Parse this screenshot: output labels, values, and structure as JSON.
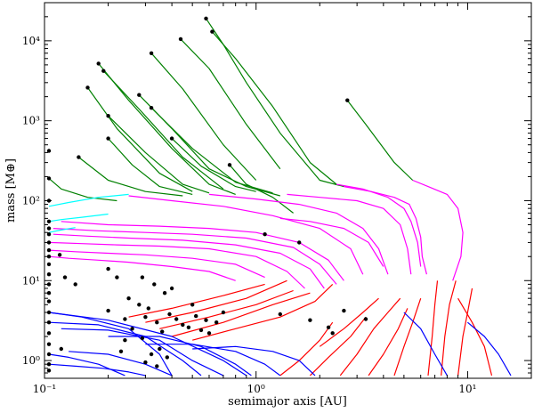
{
  "chart_data": {
    "type": "line",
    "title": "",
    "xlabel": "semimajor axis [AU]",
    "ylabel": "mass [M⊕]",
    "xscale": "log",
    "yscale": "log",
    "xlim": [
      0.1,
      20
    ],
    "ylim": [
      0.6,
      30000
    ],
    "x_ticks": [
      {
        "value": 0.1,
        "label": "10⁻¹"
      },
      {
        "value": 1,
        "label": "10⁰"
      },
      {
        "value": 10,
        "label": "10¹"
      }
    ],
    "y_ticks": [
      {
        "value": 1,
        "label": "10⁰"
      },
      {
        "value": 10,
        "label": "10¹"
      },
      {
        "value": 100,
        "label": "10²"
      },
      {
        "value": 1000,
        "label": "10³"
      },
      {
        "value": 10000,
        "label": "10⁴"
      }
    ],
    "grid": false,
    "colors": {
      "blue": "#0000ff",
      "red": "#ff0000",
      "magenta": "#ff00ff",
      "cyan": "#00ffff",
      "green": "#008000",
      "point": "#000000"
    },
    "series": [
      {
        "color": "green",
        "x": [
          0.58,
          0.7,
          0.9,
          1.3,
          2.0,
          2.6
        ],
        "y": [
          19000,
          9000,
          3000,
          700,
          180,
          150
        ]
      },
      {
        "color": "green",
        "x": [
          0.62,
          0.8,
          1.2,
          1.8,
          2.4
        ],
        "y": [
          13000,
          6000,
          1500,
          300,
          160
        ]
      },
      {
        "color": "green",
        "x": [
          0.44,
          0.6,
          0.9,
          1.3
        ],
        "y": [
          10500,
          4500,
          900,
          250
        ]
      },
      {
        "color": "green",
        "x": [
          0.32,
          0.45,
          0.7,
          1.0
        ],
        "y": [
          7000,
          2500,
          500,
          180
        ]
      },
      {
        "color": "green",
        "x": [
          0.18,
          0.25,
          0.4,
          0.6,
          0.8
        ],
        "y": [
          5200,
          1800,
          450,
          160,
          120
        ]
      },
      {
        "color": "green",
        "x": [
          0.19,
          0.28,
          0.45,
          0.7
        ],
        "y": [
          4200,
          1400,
          350,
          140
        ]
      },
      {
        "color": "green",
        "x": [
          0.16,
          0.22,
          0.35,
          0.5
        ],
        "y": [
          2600,
          800,
          220,
          130
        ]
      },
      {
        "color": "green",
        "x": [
          0.28,
          0.4,
          0.6,
          0.9,
          1.3
        ],
        "y": [
          2100,
          800,
          250,
          150,
          115
        ]
      },
      {
        "color": "green",
        "x": [
          0.32,
          0.5,
          0.8,
          1.2
        ],
        "y": [
          1450,
          450,
          170,
          125
        ]
      },
      {
        "color": "green",
        "x": [
          0.2,
          0.3,
          0.45,
          0.6
        ],
        "y": [
          1150,
          400,
          160,
          125
        ]
      },
      {
        "color": "green",
        "x": [
          0.2,
          0.26,
          0.35,
          0.5
        ],
        "y": [
          600,
          280,
          150,
          120
        ]
      },
      {
        "color": "green",
        "x": [
          0.4,
          0.55,
          0.8,
          1.0
        ],
        "y": [
          600,
          270,
          150,
          130
        ]
      },
      {
        "color": "green",
        "x": [
          0.145,
          0.2,
          0.3,
          0.45
        ],
        "y": [
          350,
          180,
          130,
          115
        ]
      },
      {
        "color": "green",
        "x": [
          0.75,
          0.9,
          1.2,
          1.5
        ],
        "y": [
          280,
          160,
          110,
          70
        ]
      },
      {
        "color": "green",
        "x": [
          2.7,
          3.3,
          4.5,
          5.5
        ],
        "y": [
          1800,
          900,
          300,
          180
        ]
      },
      {
        "color": "green",
        "x": [
          0.105,
          0.12,
          0.16,
          0.22
        ],
        "y": [
          190,
          140,
          110,
          100
        ]
      },
      {
        "color": "magenta",
        "x": [
          2.6,
          3.5,
          4.5,
          5.3,
          5.7,
          6.0,
          6.1,
          6.4
        ],
        "y": [
          150,
          130,
          110,
          90,
          60,
          35,
          20,
          12
        ]
      },
      {
        "color": "magenta",
        "x": [
          2.4,
          3.2,
          4.2,
          5.0,
          5.4,
          5.8,
          6.0
        ],
        "y": [
          160,
          140,
          110,
          80,
          55,
          30,
          15
        ]
      },
      {
        "color": "magenta",
        "x": [
          5.5,
          6.5,
          8.0,
          9.0,
          9.5,
          9.3,
          8.5
        ],
        "y": [
          180,
          150,
          120,
          80,
          40,
          20,
          10
        ]
      },
      {
        "color": "magenta",
        "x": [
          1.4,
          2.0,
          3.0,
          4.0,
          4.8,
          5.2,
          5.4
        ],
        "y": [
          120,
          110,
          100,
          80,
          50,
          25,
          12
        ]
      },
      {
        "color": "magenta",
        "x": [
          0.6,
          1.0,
          1.6,
          2.4,
          3.2,
          3.8,
          4.2
        ],
        "y": [
          120,
          105,
          90,
          70,
          45,
          25,
          12
        ]
      },
      {
        "color": "magenta",
        "x": [
          0.25,
          0.4,
          0.7,
          1.2,
          2.0,
          2.8,
          3.2
        ],
        "y": [
          115,
          100,
          85,
          65,
          45,
          25,
          12
        ]
      },
      {
        "color": "magenta",
        "x": [
          0.12,
          0.2,
          0.35,
          0.6,
          1.0,
          1.6,
          2.2,
          2.6
        ],
        "y": [
          55,
          50,
          48,
          45,
          40,
          30,
          18,
          10
        ]
      },
      {
        "color": "magenta",
        "x": [
          0.11,
          0.18,
          0.3,
          0.5,
          0.9,
          1.5,
          2.0,
          2.4
        ],
        "y": [
          45,
          42,
          40,
          38,
          34,
          26,
          16,
          9
        ]
      },
      {
        "color": "magenta",
        "x": [
          0.11,
          0.16,
          0.25,
          0.45,
          0.8,
          1.3,
          1.8,
          2.1
        ],
        "y": [
          38,
          36,
          34,
          32,
          28,
          22,
          14,
          8
        ]
      },
      {
        "color": "magenta",
        "x": [
          0.105,
          0.15,
          0.22,
          0.35,
          0.6,
          1.0,
          1.4,
          1.7
        ],
        "y": [
          30,
          29,
          28,
          27,
          25,
          20,
          13,
          8
        ]
      },
      {
        "color": "magenta",
        "x": [
          0.105,
          0.14,
          0.2,
          0.3,
          0.5,
          0.8,
          1.1
        ],
        "y": [
          24,
          23,
          22,
          21,
          19,
          16,
          11
        ]
      },
      {
        "color": "magenta",
        "x": [
          0.105,
          0.13,
          0.18,
          0.25,
          0.4,
          0.6,
          0.8
        ],
        "y": [
          20,
          19,
          18,
          17,
          15,
          13,
          10
        ]
      },
      {
        "color": "magenta",
        "x": [
          1.3,
          1.8,
          2.6,
          3.4,
          4.0
        ],
        "y": [
          60,
          55,
          45,
          30,
          15
        ]
      },
      {
        "color": "cyan",
        "x": [
          0.105,
          0.13,
          0.18,
          0.25
        ],
        "y": [
          85,
          95,
          110,
          120
        ]
      },
      {
        "color": "cyan",
        "x": [
          0.105,
          0.12,
          0.15,
          0.2
        ],
        "y": [
          55,
          58,
          62,
          68
        ]
      },
      {
        "color": "cyan",
        "x": [
          0.105,
          0.12,
          0.14
        ],
        "y": [
          40,
          43,
          46
        ]
      },
      {
        "color": "red",
        "x": [
          0.3,
          0.5,
          0.9,
          1.4
        ],
        "y": [
          3.0,
          4.0,
          6.0,
          10.0
        ]
      },
      {
        "color": "red",
        "x": [
          0.35,
          0.6,
          1.0,
          1.5
        ],
        "y": [
          2.5,
          3.5,
          5.0,
          7.5
        ]
      },
      {
        "color": "red",
        "x": [
          0.25,
          0.4,
          0.7,
          1.1
        ],
        "y": [
          3.5,
          4.5,
          6.5,
          9.0
        ]
      },
      {
        "color": "red",
        "x": [
          0.4,
          0.7,
          1.2,
          1.8
        ],
        "y": [
          2.0,
          3.0,
          5.0,
          7.0
        ]
      },
      {
        "color": "red",
        "x": [
          0.5,
          0.8,
          1.3,
          1.9,
          2.3
        ],
        "y": [
          1.8,
          2.5,
          3.5,
          5.5,
          9.0
        ]
      },
      {
        "color": "red",
        "x": [
          1.3,
          1.6,
          2.0,
          2.3
        ],
        "y": [
          0.65,
          1.0,
          1.8,
          3.0
        ]
      },
      {
        "color": "red",
        "x": [
          1.8,
          2.2,
          2.8,
          3.3
        ],
        "y": [
          0.65,
          1.1,
          2.0,
          3.5
        ]
      },
      {
        "color": "red",
        "x": [
          2.5,
          3.0,
          3.6,
          4.2,
          4.8
        ],
        "y": [
          0.65,
          1.2,
          2.5,
          4.0,
          6.0
        ]
      },
      {
        "color": "red",
        "x": [
          3.4,
          4.0,
          4.7,
          5.2
        ],
        "y": [
          0.65,
          1.2,
          2.5,
          4.5
        ]
      },
      {
        "color": "red",
        "x": [
          4.5,
          5.0,
          5.5,
          6.0
        ],
        "y": [
          0.65,
          1.5,
          3.0,
          6.0
        ]
      },
      {
        "color": "red",
        "x": [
          6.5,
          6.8,
          7.0,
          7.2
        ],
        "y": [
          0.65,
          2.0,
          5.0,
          10.0
        ]
      },
      {
        "color": "red",
        "x": [
          7.5,
          7.8,
          8.2,
          8.8
        ],
        "y": [
          0.65,
          2.0,
          5.0,
          10.0
        ]
      },
      {
        "color": "red",
        "x": [
          9.0,
          9.5,
          10.0,
          10.5
        ],
        "y": [
          0.65,
          2.0,
          4.0,
          8.0
        ]
      },
      {
        "color": "red",
        "x": [
          13.0,
          12.0,
          10.5,
          9.0
        ],
        "y": [
          0.65,
          1.5,
          3.0,
          6.0
        ]
      },
      {
        "color": "red",
        "x": [
          2.0,
          2.6,
          3.2,
          3.8
        ],
        "y": [
          1.5,
          2.5,
          4.0,
          6.0
        ]
      },
      {
        "color": "blue",
        "x": [
          0.105,
          0.15,
          0.25,
          0.35,
          0.4
        ],
        "y": [
          4.0,
          3.5,
          2.5,
          1.2,
          0.65
        ]
      },
      {
        "color": "blue",
        "x": [
          0.105,
          0.18,
          0.3,
          0.45,
          0.55
        ],
        "y": [
          3.0,
          2.8,
          2.0,
          1.0,
          0.65
        ]
      },
      {
        "color": "blue",
        "x": [
          0.12,
          0.2,
          0.35,
          0.5,
          0.7
        ],
        "y": [
          2.5,
          2.4,
          1.8,
          1.0,
          0.65
        ]
      },
      {
        "color": "blue",
        "x": [
          0.2,
          0.35,
          0.55,
          0.8,
          0.95
        ],
        "y": [
          2.0,
          2.0,
          1.5,
          0.9,
          0.65
        ]
      },
      {
        "color": "blue",
        "x": [
          0.3,
          0.5,
          0.8,
          1.1,
          1.3
        ],
        "y": [
          1.6,
          1.6,
          1.3,
          0.9,
          0.65
        ]
      },
      {
        "color": "blue",
        "x": [
          0.13,
          0.2,
          0.3,
          0.4
        ],
        "y": [
          1.3,
          1.2,
          0.9,
          0.65
        ]
      },
      {
        "color": "blue",
        "x": [
          0.105,
          0.13,
          0.18,
          0.24
        ],
        "y": [
          1.2,
          1.1,
          0.9,
          0.65
        ]
      },
      {
        "color": "blue",
        "x": [
          0.5,
          0.8,
          1.2,
          1.6,
          1.9
        ],
        "y": [
          1.4,
          1.5,
          1.3,
          1.0,
          0.65
        ]
      },
      {
        "color": "blue",
        "x": [
          0.105,
          0.2,
          0.4,
          0.7,
          0.9
        ],
        "y": [
          4.0,
          3.2,
          2.0,
          1.0,
          0.65
        ]
      },
      {
        "color": "blue",
        "x": [
          5.0,
          6.0,
          7.0,
          8.0
        ],
        "y": [
          4.0,
          2.5,
          1.2,
          0.65
        ]
      },
      {
        "color": "blue",
        "x": [
          10.0,
          12.0,
          14.0,
          16.0
        ],
        "y": [
          3.0,
          2.0,
          1.2,
          0.65
        ]
      },
      {
        "color": "blue",
        "x": [
          0.105,
          0.14,
          0.19,
          0.25,
          0.3
        ],
        "y": [
          0.9,
          0.85,
          0.8,
          0.72,
          0.65
        ]
      }
    ],
    "points": [
      [
        0.58,
        19000
      ],
      [
        0.62,
        13000
      ],
      [
        0.44,
        10500
      ],
      [
        0.32,
        7000
      ],
      [
        0.18,
        5200
      ],
      [
        0.19,
        4200
      ],
      [
        0.16,
        2600
      ],
      [
        0.28,
        2100
      ],
      [
        2.7,
        1800
      ],
      [
        0.32,
        1450
      ],
      [
        0.2,
        1150
      ],
      [
        0.4,
        600
      ],
      [
        0.2,
        600
      ],
      [
        0.75,
        280
      ],
      [
        0.105,
        420
      ],
      [
        0.145,
        350
      ],
      [
        0.105,
        190
      ],
      [
        0.105,
        100
      ],
      [
        1.1,
        38
      ],
      [
        1.6,
        30
      ],
      [
        0.105,
        55
      ],
      [
        0.105,
        45
      ],
      [
        0.105,
        38
      ],
      [
        0.105,
        30
      ],
      [
        0.105,
        24
      ],
      [
        0.105,
        20
      ],
      [
        0.105,
        16
      ],
      [
        0.105,
        12
      ],
      [
        0.105,
        9
      ],
      [
        0.105,
        7
      ],
      [
        0.105,
        5.5
      ],
      [
        0.105,
        4
      ],
      [
        0.105,
        3
      ],
      [
        0.105,
        2.2
      ],
      [
        0.105,
        1.6
      ],
      [
        0.105,
        1.2
      ],
      [
        0.105,
        0.9
      ],
      [
        0.105,
        0.75
      ],
      [
        0.118,
        21
      ],
      [
        0.125,
        11
      ],
      [
        0.14,
        9
      ],
      [
        0.2,
        14
      ],
      [
        0.22,
        11
      ],
      [
        0.25,
        6
      ],
      [
        0.29,
        11
      ],
      [
        0.33,
        9
      ],
      [
        0.37,
        7
      ],
      [
        0.4,
        8
      ],
      [
        0.28,
        5
      ],
      [
        0.31,
        4.5
      ],
      [
        0.2,
        4.2
      ],
      [
        0.24,
        3.3
      ],
      [
        0.26,
        2.5
      ],
      [
        0.3,
        3.5
      ],
      [
        0.34,
        3
      ],
      [
        0.36,
        2.3
      ],
      [
        0.39,
        3.8
      ],
      [
        0.42,
        3.3
      ],
      [
        0.45,
        2.8
      ],
      [
        0.48,
        2.6
      ],
      [
        0.52,
        3.6
      ],
      [
        0.55,
        2.4
      ],
      [
        0.58,
        3.2
      ],
      [
        0.6,
        2.2
      ],
      [
        0.65,
        3.0
      ],
      [
        0.7,
        4.0
      ],
      [
        0.5,
        5.0
      ],
      [
        0.24,
        1.8
      ],
      [
        0.29,
        1.9
      ],
      [
        0.23,
        1.3
      ],
      [
        0.35,
        1.4
      ],
      [
        0.32,
        1.2
      ],
      [
        0.38,
        1.1
      ],
      [
        0.3,
        0.95
      ],
      [
        0.34,
        0.85
      ],
      [
        0.12,
        1.4
      ],
      [
        1.3,
        3.8
      ],
      [
        1.8,
        3.2
      ],
      [
        2.3,
        2.2
      ],
      [
        2.6,
        4.2
      ],
      [
        3.3,
        3.3
      ],
      [
        2.2,
        2.6
      ]
    ]
  }
}
